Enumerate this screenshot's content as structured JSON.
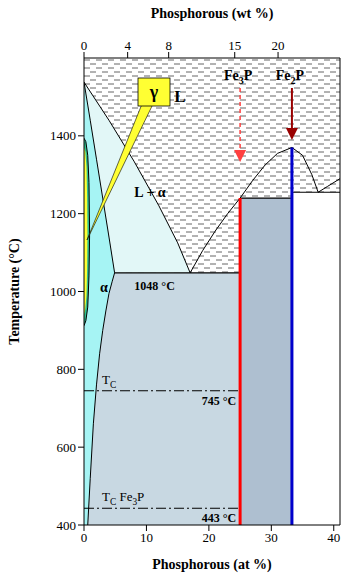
{
  "chart_data": {
    "type": "phase_diagram",
    "x_label": "Phosphorous (at %)",
    "x2_label": "Phosphorous (wt %)",
    "y_label": "Temperature (°C)",
    "xlim": [
      0,
      41
    ],
    "xticks": [
      0,
      10,
      20,
      30,
      40
    ],
    "x2ticks": [
      {
        "value": 0,
        "label": "0"
      },
      {
        "value": 6.99,
        "label": "4"
      },
      {
        "value": 13.56,
        "label": "8"
      },
      {
        "value": 24.14,
        "label": "15"
      },
      {
        "value": 31.08,
        "label": "20"
      }
    ],
    "ylim": [
      400,
      1600
    ],
    "yticks": [
      400,
      600,
      800,
      1000,
      1200,
      1400
    ],
    "grid": false,
    "annotations": [
      {
        "text": "L"
      }
    ],
    "regions": [
      {
        "color": "#c8d8e2",
        "x": [
          0,
          25
        ],
        "low": [
          400,
          400
        ],
        "high": [
          1048,
          1048
        ]
      },
      {
        "color": "#aebfd0",
        "x": [
          25,
          33.3
        ],
        "low": [
          400,
          400
        ],
        "high": [
          1240,
          1240
        ]
      },
      {
        "color": "#ffffff",
        "x": [
          33.3,
          41
        ],
        "low": [
          400,
          400
        ],
        "high": [
          1255,
          1255
        ]
      },
      {
        "label": "L + α",
        "color": "#e2f7f7",
        "x": [
          0,
          1,
          2,
          3,
          4,
          4.9,
          6,
          8,
          10,
          12,
          14,
          16,
          17
        ],
        "low": [
          1538,
          1440,
          1340,
          1240,
          1140,
          1048,
          1048,
          1048,
          1048,
          1048,
          1048,
          1048,
          1048
        ],
        "high": [
          1538,
          1514,
          1490,
          1465,
          1440,
          1417,
          1390,
          1335,
          1278,
          1220,
          1160,
          1090,
          1048
        ]
      },
      {
        "label": "α",
        "color": "#a6f4f4",
        "x": [
          0,
          0.6,
          1,
          1.5,
          2,
          2.5,
          3,
          3.5,
          4,
          4.5,
          4.9
        ],
        "low": [
          400,
          400,
          520,
          660,
          760,
          840,
          900,
          950,
          995,
          1025,
          1048
        ],
        "high": [
          1538,
          1478,
          1440,
          1390,
          1340,
          1290,
          1240,
          1190,
          1140,
          1090,
          1048
        ]
      },
      {
        "color": "#2fbf8f",
        "x": [
          0,
          0.3,
          0.6,
          0.8,
          0.9
        ],
        "low": [
          912,
          925,
          960,
          1040,
          1150
        ],
        "high": [
          1394,
          1385,
          1350,
          1280,
          1150
        ]
      },
      {
        "label": "γ",
        "color": "#ffff33",
        "x": [
          0,
          0.2,
          0.4,
          0.5,
          0.55
        ],
        "low": [
          940,
          955,
          990,
          1060,
          1150
        ],
        "high": [
          1370,
          1360,
          1320,
          1240,
          1150
        ]
      }
    ],
    "boundaries": [
      {
        "color": "#000000",
        "x": [
          0,
          4,
          8,
          12,
          15,
          17,
          19,
          21,
          23,
          25,
          27,
          29,
          31,
          33.3,
          35,
          36.5,
          37.5,
          39,
          41
        ],
        "values": [
          1538,
          1440,
          1335,
          1220,
          1125,
          1048,
          1105,
          1155,
          1200,
          1240,
          1285,
          1325,
          1355,
          1370,
          1350,
          1300,
          1255,
          1270,
          1290
        ]
      },
      {
        "color": "#000000",
        "x": [
          0,
          1,
          2,
          3,
          4,
          4.9,
          4.5,
          4,
          3.5,
          3,
          2.5,
          2,
          1.5,
          1,
          0.6
        ],
        "values": [
          1538,
          1440,
          1340,
          1240,
          1140,
          1048,
          1025,
          995,
          950,
          900,
          840,
          760,
          660,
          520,
          400
        ]
      },
      {
        "color": "#000000",
        "x": [
          0,
          0.3,
          0.6,
          0.8,
          0.9,
          0.8,
          0.6,
          0.3,
          0
        ],
        "values": [
          912,
          925,
          960,
          1040,
          1150,
          1280,
          1350,
          1385,
          1394
        ]
      }
    ],
    "horizontal_lines": [
      {
        "value": 1048,
        "x": [
          4.9,
          25
        ],
        "label": "1048 °C",
        "line_style": "solid",
        "color": "#000000"
      },
      {
        "value": 1240,
        "x": [
          25,
          33.3
        ],
        "line_style": "solid",
        "color": "#000000"
      },
      {
        "value": 1255,
        "x": [
          33.3,
          41
        ],
        "line_style": "solid",
        "color": "#000000"
      },
      {
        "value": 745,
        "x": [
          0,
          25
        ],
        "name": "TC",
        "label": "745 °C",
        "line_style": "dashdot",
        "color": "#000000"
      },
      {
        "value": 443,
        "x": [
          0,
          25
        ],
        "name": "TC Fe3P",
        "label": "443 °C",
        "line_style": "dashdot",
        "color": "#000000"
      }
    ],
    "compounds": [
      {
        "label": "Fe3P",
        "x": 25,
        "top": 1240,
        "color": "#ff0000"
      },
      {
        "label": "Fe2P",
        "x": 33.3,
        "top": 1370,
        "color": "#0000cc"
      }
    ]
  }
}
